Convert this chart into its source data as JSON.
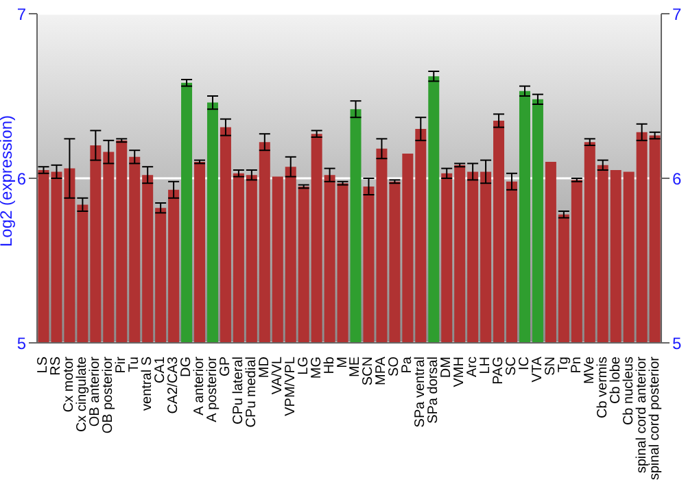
{
  "chart_data": {
    "type": "bar",
    "ylabel": "Log2 (expression)",
    "categories": [
      "LS",
      "RS",
      "Cx motor",
      "Cx cingulate",
      "OB anterior",
      "OB posterior",
      "Pir",
      "Tu",
      "ventral S",
      "CA1",
      "CA2/CA3",
      "DG",
      "A anterior",
      "A posterior",
      "GP",
      "CPu lateral",
      "CPu medial",
      "MD",
      "VA/VL",
      "VPM/VPL",
      "LG",
      "MG",
      "Hb",
      "M",
      "ME",
      "SCN",
      "MPA",
      "SO",
      "Pa",
      "SPa ventral",
      "SPa dorsal",
      "DM",
      "VMH",
      "Arc",
      "LH",
      "PAG",
      "SC",
      "IC",
      "VTA",
      "SN",
      "Tg",
      "Pn",
      "MVe",
      "Cb vermis",
      "Cb lobe",
      "Cb nucleus",
      "spinal cord anterior",
      "spinal cord posterior"
    ],
    "values": [
      6.05,
      6.04,
      6.06,
      5.84,
      6.2,
      6.16,
      6.23,
      6.13,
      6.02,
      5.82,
      5.93,
      6.58,
      6.1,
      6.46,
      6.31,
      6.03,
      6.02,
      6.22,
      6.01,
      6.07,
      5.95,
      6.27,
      6.02,
      5.97,
      6.42,
      5.95,
      6.18,
      5.98,
      6.15,
      6.3,
      6.62,
      6.03,
      6.08,
      6.04,
      6.04,
      6.35,
      5.98,
      6.53,
      6.48,
      6.1,
      5.78,
      5.99,
      6.22,
      6.08,
      6.05,
      6.04,
      6.28,
      6.26
    ],
    "errors": [
      0.02,
      0.04,
      0.18,
      0.04,
      0.09,
      0.07,
      0.01,
      0.04,
      0.05,
      0.03,
      0.05,
      0.02,
      0.01,
      0.04,
      0.05,
      0.02,
      0.03,
      0.05,
      0.0,
      0.06,
      0.01,
      0.02,
      0.04,
      0.01,
      0.05,
      0.05,
      0.06,
      0.01,
      0.0,
      0.07,
      0.03,
      0.03,
      0.01,
      0.05,
      0.07,
      0.04,
      0.05,
      0.03,
      0.03,
      0.0,
      0.02,
      0.01,
      0.02,
      0.03,
      0.0,
      0.0,
      0.05,
      0.02
    ],
    "colors": [
      "#b03232",
      "#b03232",
      "#b03232",
      "#b03232",
      "#b03232",
      "#b03232",
      "#b03232",
      "#b03232",
      "#b03232",
      "#b03232",
      "#b03232",
      "#2f9e2f",
      "#b03232",
      "#2f9e2f",
      "#b03232",
      "#b03232",
      "#b03232",
      "#b03232",
      "#b03232",
      "#b03232",
      "#b03232",
      "#b03232",
      "#b03232",
      "#b03232",
      "#2f9e2f",
      "#b03232",
      "#b03232",
      "#b03232",
      "#b03232",
      "#b03232",
      "#2f9e2f",
      "#b03232",
      "#b03232",
      "#b03232",
      "#b03232",
      "#b03232",
      "#b03232",
      "#2f9e2f",
      "#2f9e2f",
      "#b03232",
      "#b03232",
      "#b03232",
      "#b03232",
      "#b03232",
      "#b03232",
      "#b03232",
      "#b03232",
      "#b03232"
    ],
    "ylim": [
      5,
      7
    ],
    "yticks": [
      5,
      6,
      7
    ],
    "y2lim": [
      5,
      7
    ],
    "y2ticks": [
      5,
      6,
      7
    ],
    "grid": "y"
  }
}
